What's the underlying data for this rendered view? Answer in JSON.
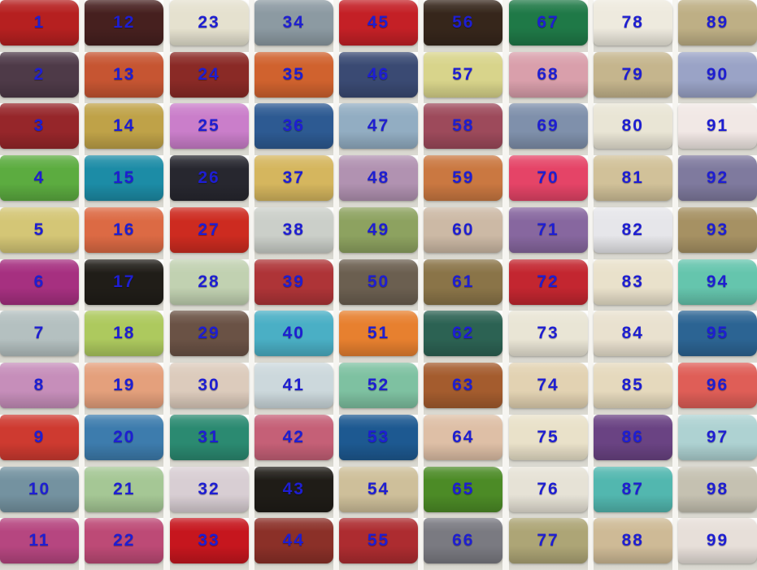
{
  "page": {
    "description": "Fabric satin color swatch sample chart, numbered bolts stacked on shelves",
    "background_color": "#ffffff",
    "shelf_edge_color": "#c9c7bf",
    "number_color": "#1e1ed2"
  },
  "grid": {
    "columns": 9,
    "rows": 11,
    "numbering": "top-to-bottom within each column, left column first"
  },
  "swatches": [
    {
      "n": 1,
      "color": "#b62020"
    },
    {
      "n": 2,
      "color": "#4e3a48"
    },
    {
      "n": 3,
      "color": "#96262a"
    },
    {
      "n": 4,
      "color": "#5cac40"
    },
    {
      "n": 5,
      "color": "#d4c676"
    },
    {
      "n": 6,
      "color": "#a63080"
    },
    {
      "n": 7,
      "color": "#b4c0c0"
    },
    {
      "n": 8,
      "color": "#c68eba"
    },
    {
      "n": 9,
      "color": "#ce3a30"
    },
    {
      "n": 10,
      "color": "#7492a0"
    },
    {
      "n": 11,
      "color": "#b64680"
    },
    {
      "n": 12,
      "color": "#46201f"
    },
    {
      "n": 13,
      "color": "#c65532"
    },
    {
      "n": 14,
      "color": "#bfa248"
    },
    {
      "n": 15,
      "color": "#1c8ca6"
    },
    {
      "n": 16,
      "color": "#dc6a44"
    },
    {
      "n": 17,
      "color": "#201d18"
    },
    {
      "n": 18,
      "color": "#adc95e"
    },
    {
      "n": 19,
      "color": "#e4a07c"
    },
    {
      "n": 20,
      "color": "#3d7cad"
    },
    {
      "n": 21,
      "color": "#a5c795"
    },
    {
      "n": 22,
      "color": "#bd4a76"
    },
    {
      "n": 23,
      "color": "#e5e1cf"
    },
    {
      "n": 24,
      "color": "#8a2a26"
    },
    {
      "n": 25,
      "color": "#ca7eca"
    },
    {
      "n": 26,
      "color": "#27272f"
    },
    {
      "n": 27,
      "color": "#cd2b20"
    },
    {
      "n": 28,
      "color": "#c1d1b1"
    },
    {
      "n": 29,
      "color": "#6a5245"
    },
    {
      "n": 30,
      "color": "#dccbbc"
    },
    {
      "n": 31,
      "color": "#2b8a71"
    },
    {
      "n": 32,
      "color": "#d8ced3"
    },
    {
      "n": 33,
      "color": "#c6161e"
    },
    {
      "n": 34,
      "color": "#8c9aa2"
    },
    {
      "n": 35,
      "color": "#d0622e"
    },
    {
      "n": 36,
      "color": "#2d5a92"
    },
    {
      "n": 37,
      "color": "#d5b65e"
    },
    {
      "n": 38,
      "color": "#cbcfc9"
    },
    {
      "n": 39,
      "color": "#ae3437"
    },
    {
      "n": 40,
      "color": "#4aafc5"
    },
    {
      "n": 41,
      "color": "#ccd8dc"
    },
    {
      "n": 42,
      "color": "#c56077"
    },
    {
      "n": 43,
      "color": "#1f1c17"
    },
    {
      "n": 44,
      "color": "#8b3028"
    },
    {
      "n": 45,
      "color": "#c42026"
    },
    {
      "n": 46,
      "color": "#3a4a73"
    },
    {
      "n": 47,
      "color": "#92adc2"
    },
    {
      "n": 48,
      "color": "#b192b1"
    },
    {
      "n": 49,
      "color": "#8da260"
    },
    {
      "n": 50,
      "color": "#6b5f50"
    },
    {
      "n": 51,
      "color": "#e7802f"
    },
    {
      "n": 52,
      "color": "#7ec1a1"
    },
    {
      "n": 53,
      "color": "#1d5991"
    },
    {
      "n": 54,
      "color": "#cebf9a"
    },
    {
      "n": 55,
      "color": "#ad2c30"
    },
    {
      "n": 56,
      "color": "#36261b"
    },
    {
      "n": 57,
      "color": "#d8d48b"
    },
    {
      "n": 58,
      "color": "#9d4a5b"
    },
    {
      "n": 59,
      "color": "#ca7841"
    },
    {
      "n": 60,
      "color": "#ccb9a5"
    },
    {
      "n": 61,
      "color": "#8a7448"
    },
    {
      "n": 62,
      "color": "#2c6253"
    },
    {
      "n": 63,
      "color": "#a45c2e"
    },
    {
      "n": 64,
      "color": "#debfa6"
    },
    {
      "n": 65,
      "color": "#4c8b26"
    },
    {
      "n": 66,
      "color": "#7a7a81"
    },
    {
      "n": 67,
      "color": "#1f7947"
    },
    {
      "n": 68,
      "color": "#d99fab"
    },
    {
      "n": 69,
      "color": "#7f90ab"
    },
    {
      "n": 70,
      "color": "#e54467"
    },
    {
      "n": 71,
      "color": "#87679f"
    },
    {
      "n": 72,
      "color": "#c32630"
    },
    {
      "n": 73,
      "color": "#e9e5d5"
    },
    {
      "n": 74,
      "color": "#e2d2b2"
    },
    {
      "n": 75,
      "color": "#e9e1c9"
    },
    {
      "n": 76,
      "color": "#e6e2d6"
    },
    {
      "n": 77,
      "color": "#ada576"
    },
    {
      "n": 78,
      "color": "#eeeade"
    },
    {
      "n": 79,
      "color": "#c5b58d"
    },
    {
      "n": 80,
      "color": "#e9e5d5"
    },
    {
      "n": 81,
      "color": "#d1c199"
    },
    {
      "n": 82,
      "color": "#e6e6ea"
    },
    {
      "n": 83,
      "color": "#e9e1cb"
    },
    {
      "n": 84,
      "color": "#e9e1cf"
    },
    {
      "n": 85,
      "color": "#e5d9bd"
    },
    {
      "n": 86,
      "color": "#6a4383"
    },
    {
      "n": 87,
      "color": "#52b7af"
    },
    {
      "n": 88,
      "color": "#ceba96"
    },
    {
      "n": 89,
      "color": "#beaf85"
    },
    {
      "n": 90,
      "color": "#9aa3c6"
    },
    {
      "n": 91,
      "color": "#f1e8e5"
    },
    {
      "n": 92,
      "color": "#7f7a9e"
    },
    {
      "n": 93,
      "color": "#a69163"
    },
    {
      "n": 94,
      "color": "#65c5ad"
    },
    {
      "n": 95,
      "color": "#2c6493"
    },
    {
      "n": 96,
      "color": "#df5e57"
    },
    {
      "n": 97,
      "color": "#aed2d2"
    },
    {
      "n": 98,
      "color": "#c5c1b1"
    },
    {
      "n": 99,
      "color": "#e7dfd9"
    }
  ]
}
